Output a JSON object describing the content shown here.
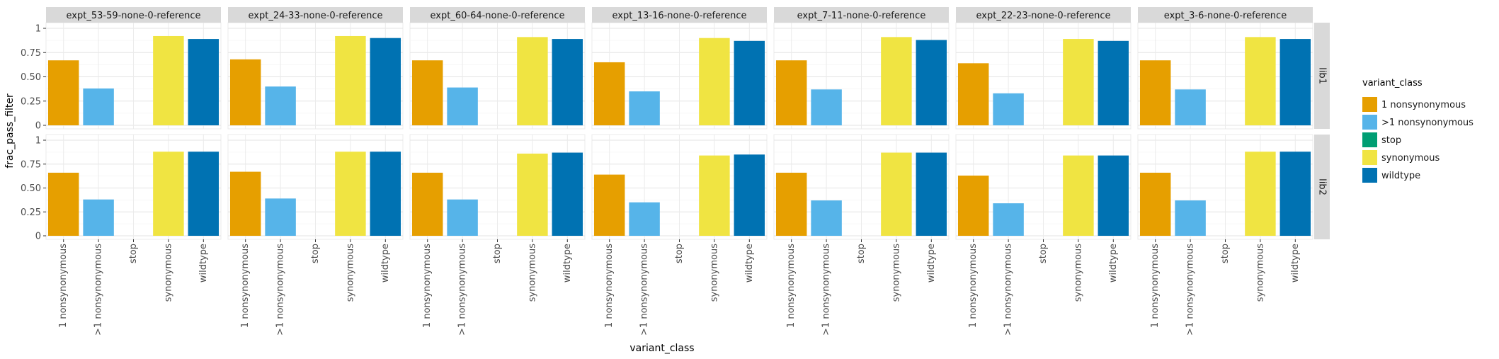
{
  "chart_data": {
    "type": "bar",
    "xlabel": "variant_class",
    "ylabel": "frac_pass_filter",
    "ylim": [
      0,
      1
    ],
    "yticks": [
      0,
      0.25,
      0.5,
      0.75,
      1
    ],
    "ytick_labels": [
      "0",
      "0.25",
      "0.50",
      "0.75",
      "1"
    ],
    "categories": [
      "1 nonsynonymous",
      ">1 nonsynonymous",
      "stop",
      "synonymous",
      "wildtype"
    ],
    "colors": {
      "1 nonsynonymous": "#E69F00",
      ">1 nonsynonymous": "#56B4E9",
      "stop": "#009E73",
      "synonymous": "#F0E442",
      "wildtype": "#0072B2"
    },
    "facet_cols": [
      "expt_53-59-none-0-reference",
      "expt_24-33-none-0-reference",
      "expt_60-64-none-0-reference",
      "expt_13-16-none-0-reference",
      "expt_7-11-none-0-reference",
      "expt_22-23-none-0-reference",
      "expt_3-6-none-0-reference"
    ],
    "facet_rows": [
      "lib1",
      "lib2"
    ],
    "grid": true,
    "legend": {
      "title": "variant_class",
      "position": "right",
      "entries": [
        "1 nonsynonymous",
        ">1 nonsynonymous",
        "stop",
        "synonymous",
        "wildtype"
      ]
    },
    "panels": [
      {
        "row": "lib1",
        "col": "expt_53-59-none-0-reference",
        "values": [
          0.67,
          0.38,
          0,
          0.92,
          0.89
        ]
      },
      {
        "row": "lib1",
        "col": "expt_24-33-none-0-reference",
        "values": [
          0.68,
          0.4,
          0,
          0.92,
          0.9
        ]
      },
      {
        "row": "lib1",
        "col": "expt_60-64-none-0-reference",
        "values": [
          0.67,
          0.39,
          0,
          0.91,
          0.89
        ]
      },
      {
        "row": "lib1",
        "col": "expt_13-16-none-0-reference",
        "values": [
          0.65,
          0.35,
          0,
          0.9,
          0.87
        ]
      },
      {
        "row": "lib1",
        "col": "expt_7-11-none-0-reference",
        "values": [
          0.67,
          0.37,
          0,
          0.91,
          0.88
        ]
      },
      {
        "row": "lib1",
        "col": "expt_22-23-none-0-reference",
        "values": [
          0.64,
          0.33,
          0,
          0.89,
          0.87
        ]
      },
      {
        "row": "lib1",
        "col": "expt_3-6-none-0-reference",
        "values": [
          0.67,
          0.37,
          0,
          0.91,
          0.89
        ]
      },
      {
        "row": "lib2",
        "col": "expt_53-59-none-0-reference",
        "values": [
          0.66,
          0.38,
          0,
          0.88,
          0.88
        ]
      },
      {
        "row": "lib2",
        "col": "expt_24-33-none-0-reference",
        "values": [
          0.67,
          0.39,
          0,
          0.88,
          0.88
        ]
      },
      {
        "row": "lib2",
        "col": "expt_60-64-none-0-reference",
        "values": [
          0.66,
          0.38,
          0,
          0.86,
          0.87
        ]
      },
      {
        "row": "lib2",
        "col": "expt_13-16-none-0-reference",
        "values": [
          0.64,
          0.35,
          0,
          0.84,
          0.85
        ]
      },
      {
        "row": "lib2",
        "col": "expt_7-11-none-0-reference",
        "values": [
          0.66,
          0.37,
          0,
          0.87,
          0.87
        ]
      },
      {
        "row": "lib2",
        "col": "expt_22-23-none-0-reference",
        "values": [
          0.63,
          0.34,
          0,
          0.84,
          0.84
        ]
      },
      {
        "row": "lib2",
        "col": "expt_3-6-none-0-reference",
        "values": [
          0.66,
          0.37,
          0,
          0.88,
          0.88
        ]
      }
    ]
  }
}
